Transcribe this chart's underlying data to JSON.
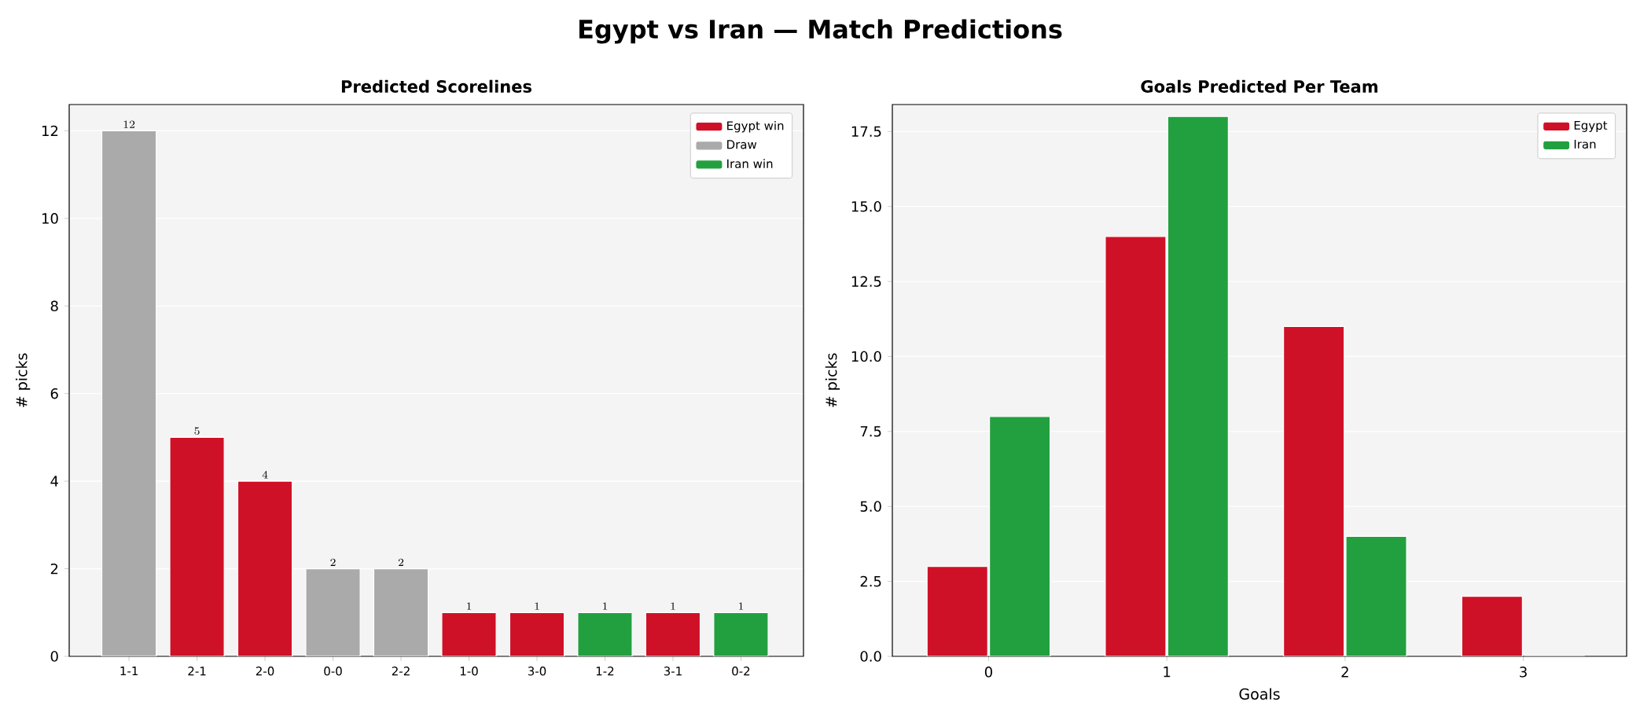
{
  "chart_data": [
    {
      "type": "other",
      "title": "Egypt vs Iran  —  Match Predictions"
    },
    {
      "type": "bar",
      "title": "Predicted Scorelines",
      "ylabel": "# picks",
      "categories": [
        "1-1",
        "2-1",
        "2-0",
        "0-0",
        "2-2",
        "1-0",
        "3-0",
        "1-2",
        "3-1",
        "0-2"
      ],
      "series": [
        {
          "name": "Egypt win",
          "color": "#cf1128",
          "values": [
            null,
            5,
            4,
            null,
            null,
            1,
            1,
            null,
            1,
            null
          ]
        },
        {
          "name": "Draw",
          "color": "#aaaaaa",
          "values": [
            12,
            null,
            null,
            2,
            2,
            null,
            null,
            null,
            null,
            null
          ]
        },
        {
          "name": "Iran win",
          "color": "#22a03f",
          "values": [
            null,
            null,
            null,
            null,
            null,
            null,
            null,
            1,
            null,
            1
          ]
        }
      ],
      "stacked": true,
      "data_labels": true,
      "ylim": [
        0,
        12.6
      ],
      "yticks": [
        0,
        2,
        4,
        6,
        8,
        10,
        12
      ],
      "grid": "y",
      "legend": "top right"
    },
    {
      "type": "bar",
      "title": "Goals Predicted Per Team",
      "xlabel": "Goals",
      "ylabel": "# picks",
      "categories": [
        "0",
        "1",
        "2",
        "3"
      ],
      "series": [
        {
          "name": "Egypt",
          "color": "#cf1128",
          "values": [
            3,
            14,
            11,
            2
          ]
        },
        {
          "name": "Iran",
          "color": "#22a03f",
          "values": [
            8,
            18,
            4,
            0
          ]
        }
      ],
      "ylim": [
        0,
        18.4
      ],
      "yticks": [
        {
          "value": 0,
          "label": "0.0"
        },
        {
          "value": 2.5,
          "label": "2.5"
        },
        {
          "value": 5,
          "label": "5.0"
        },
        {
          "value": 7.5,
          "label": "7.5"
        },
        {
          "value": 10,
          "label": "10.0"
        },
        {
          "value": 12.5,
          "label": "12.5"
        },
        {
          "value": 15,
          "label": "15.0"
        },
        {
          "value": 17.5,
          "label": "17.5"
        }
      ],
      "grid": "y",
      "legend": "top right"
    }
  ]
}
